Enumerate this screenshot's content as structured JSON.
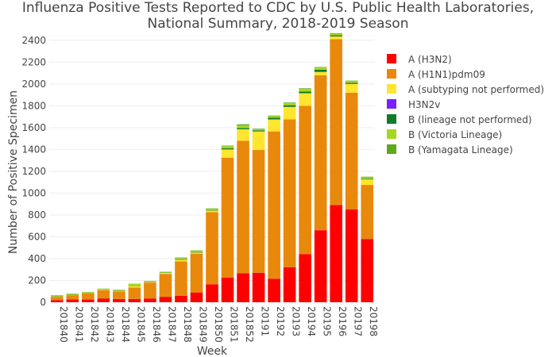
{
  "chart_data": {
    "type": "bar",
    "stacked": true,
    "title": "Influenza Positive Tests Reported to CDC by U.S. Public Health Laboratories,",
    "subtitle": "National Summary, 2018-2019 Season",
    "xlabel": "Week",
    "ylabel": "Number of Positive Specimen",
    "ylim": [
      0,
      2500
    ],
    "yticks": [
      0,
      200,
      400,
      600,
      800,
      1000,
      1200,
      1400,
      1600,
      1800,
      2000,
      2200,
      2400
    ],
    "grid": true,
    "legend_position": "right",
    "categories": [
      "201840",
      "201841",
      "201842",
      "201843",
      "201844",
      "201845",
      "201846",
      "201847",
      "201848",
      "201849",
      "201850",
      "201851",
      "201852",
      "20191",
      "20192",
      "20193",
      "20194",
      "20195",
      "20196",
      "20197",
      "20198"
    ],
    "series": [
      {
        "name": "A (H3N2)",
        "color": "#ff0000",
        "values": [
          20,
          25,
          25,
          35,
          30,
          30,
          35,
          50,
          60,
          90,
          165,
          225,
          265,
          270,
          215,
          320,
          440,
          660,
          890,
          850,
          580
        ]
      },
      {
        "name": "A (H1N1)pdm09",
        "color": "#e8890c",
        "values": [
          30,
          40,
          55,
          75,
          70,
          105,
          145,
          210,
          315,
          355,
          660,
          1100,
          1215,
          1125,
          1350,
          1355,
          1360,
          1420,
          1520,
          1070,
          495
        ]
      },
      {
        "name": "A (subtyping not performed)",
        "color": "#ffe52e",
        "values": [
          5,
          5,
          5,
          5,
          5,
          15,
          5,
          10,
          15,
          10,
          15,
          75,
          105,
          170,
          110,
          115,
          115,
          30,
          25,
          80,
          50
        ]
      },
      {
        "name": "H3N2v",
        "color": "#7b1fff",
        "values": [
          0,
          0,
          0,
          0,
          0,
          0,
          0,
          0,
          0,
          0,
          0,
          0,
          0,
          0,
          0,
          0,
          0,
          0,
          0,
          0,
          0
        ]
      },
      {
        "name": "B (lineage not performed)",
        "color": "#117a2a",
        "values": [
          3,
          3,
          3,
          3,
          3,
          3,
          3,
          3,
          5,
          5,
          5,
          10,
          10,
          10,
          15,
          15,
          15,
          20,
          10,
          10,
          5
        ]
      },
      {
        "name": "B (Victoria Lineage)",
        "color": "#a7d620",
        "values": [
          5,
          5,
          5,
          5,
          5,
          15,
          5,
          5,
          10,
          10,
          10,
          20,
          25,
          10,
          15,
          20,
          25,
          20,
          15,
          15,
          15
        ]
      },
      {
        "name": "B (Yamagata Lineage)",
        "color": "#5ea81c",
        "values": [
          2,
          2,
          2,
          2,
          2,
          2,
          2,
          2,
          5,
          5,
          5,
          5,
          10,
          5,
          5,
          5,
          5,
          5,
          5,
          5,
          5
        ]
      }
    ]
  }
}
